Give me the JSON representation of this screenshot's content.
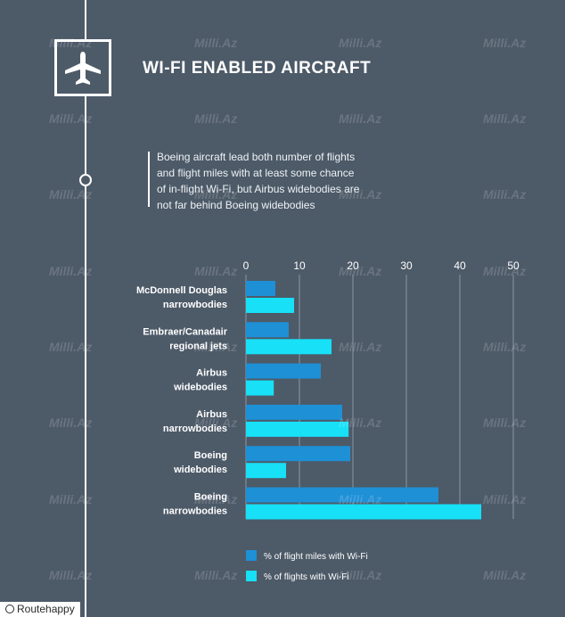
{
  "header": {
    "title": "WI-FI ENABLED AIRCRAFT",
    "icon": "airplane-icon"
  },
  "description": {
    "lines": [
      "Boeing aircraft lead both number of flights",
      "and flight miles with at least some chance",
      "of in-flight Wi-Fi, but Airbus widebodies are",
      "not far behind Boeing widebodies"
    ]
  },
  "chart_data": {
    "type": "bar",
    "orientation": "horizontal",
    "categories": [
      [
        "McDonnell Douglas",
        "narrowbodies"
      ],
      [
        "Embraer/Canadair",
        "regional jets"
      ],
      [
        "Airbus",
        "widebodies"
      ],
      [
        "Airbus",
        "narrowbodies"
      ],
      [
        "Boeing",
        "widebodies"
      ],
      [
        "Boeing",
        "narrowbodies"
      ]
    ],
    "series": [
      {
        "name": "% of flight miles with Wi-Fi",
        "color": "#1e90d6",
        "values": [
          5.5,
          8,
          14,
          18,
          19.5,
          36
        ]
      },
      {
        "name": "% of flights with Wi-Fi",
        "color": "#17e0f7",
        "values": [
          9,
          16,
          5.2,
          19.2,
          7.5,
          44
        ]
      }
    ],
    "xticks": [
      "0",
      "10",
      "20",
      "30",
      "40",
      "50"
    ],
    "xlim": [
      0,
      50
    ],
    "grid": true,
    "legend_position": "bottom"
  },
  "footer": {
    "brand": "Routehappy"
  },
  "watermark": "Milli.Az"
}
